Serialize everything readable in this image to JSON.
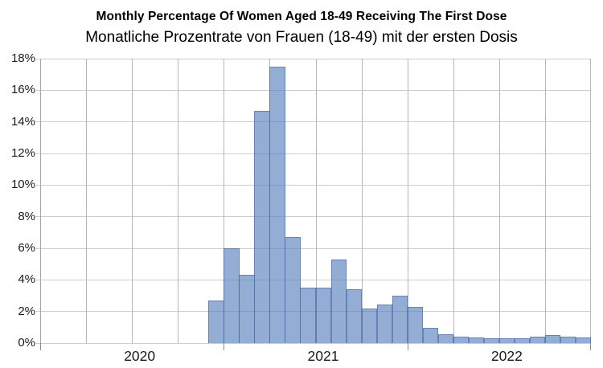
{
  "header": {
    "title": "Monthly Percentage Of Women Aged 18-49 Receiving The First Dose",
    "subtitle": "Monatliche Prozentrate von Frauen (18-49) mit der ersten Dosis"
  },
  "chart_data": {
    "type": "bar",
    "title": "Monthly Percentage Of Women Aged 18-49 Receiving The First Dose",
    "subtitle": "Monatliche Prozentrate von Frauen (18-49) mit der ersten Dosis",
    "x_unit": "month",
    "axis_start_month": "2020-01",
    "axis_end_month": "2023-01",
    "months": [
      "2020-12",
      "2021-01",
      "2021-02",
      "2021-03",
      "2021-04",
      "2021-05",
      "2021-06",
      "2021-07",
      "2021-08",
      "2021-09",
      "2021-10",
      "2021-11",
      "2021-12",
      "2022-01",
      "2022-02",
      "2022-03",
      "2022-04",
      "2022-05",
      "2022-06",
      "2022-07",
      "2022-08",
      "2022-09",
      "2022-10",
      "2022-11",
      "2022-12"
    ],
    "values": [
      2.7,
      6.0,
      4.3,
      14.7,
      17.5,
      6.7,
      3.5,
      3.5,
      5.3,
      3.4,
      2.2,
      2.45,
      3.0,
      2.3,
      0.95,
      0.55,
      0.4,
      0.35,
      0.3,
      0.3,
      0.3,
      0.4,
      0.5,
      0.4,
      0.35
    ],
    "ylim": [
      0,
      18
    ],
    "y_tick_step_pct": 2,
    "y_tick_labels": [
      "0%",
      "2%",
      "4%",
      "6%",
      "8%",
      "10%",
      "12%",
      "14%",
      "16%",
      "18%"
    ],
    "x_year_labels": [
      {
        "label": "2020",
        "center_month": "2020-07"
      },
      {
        "label": "2021",
        "center_month": "2021-07"
      },
      {
        "label": "2022",
        "center_month": "2022-07"
      }
    ],
    "year_tick_months": [
      "2020-01",
      "2021-01",
      "2022-01",
      "2023-01"
    ],
    "grid": {
      "vertical_every_months": 3,
      "horizontal_every_pct": 2,
      "grid_on": true
    },
    "legend": {
      "visible": false
    },
    "colors": {
      "bar_fill": "rgba(93,130,189,0.66)",
      "bar_border": "rgba(72,104,158,0.6)",
      "bar_effective": "#9FB4D8",
      "grid_horizontal": "#cdcdcd",
      "grid_vertical": "#b6b6b6",
      "axis_left": "#a5a5a5",
      "year_tick": "#8c8c8c",
      "label_text": "#1a1a1a",
      "title_text": "#000000",
      "background": "#ffffff"
    }
  }
}
